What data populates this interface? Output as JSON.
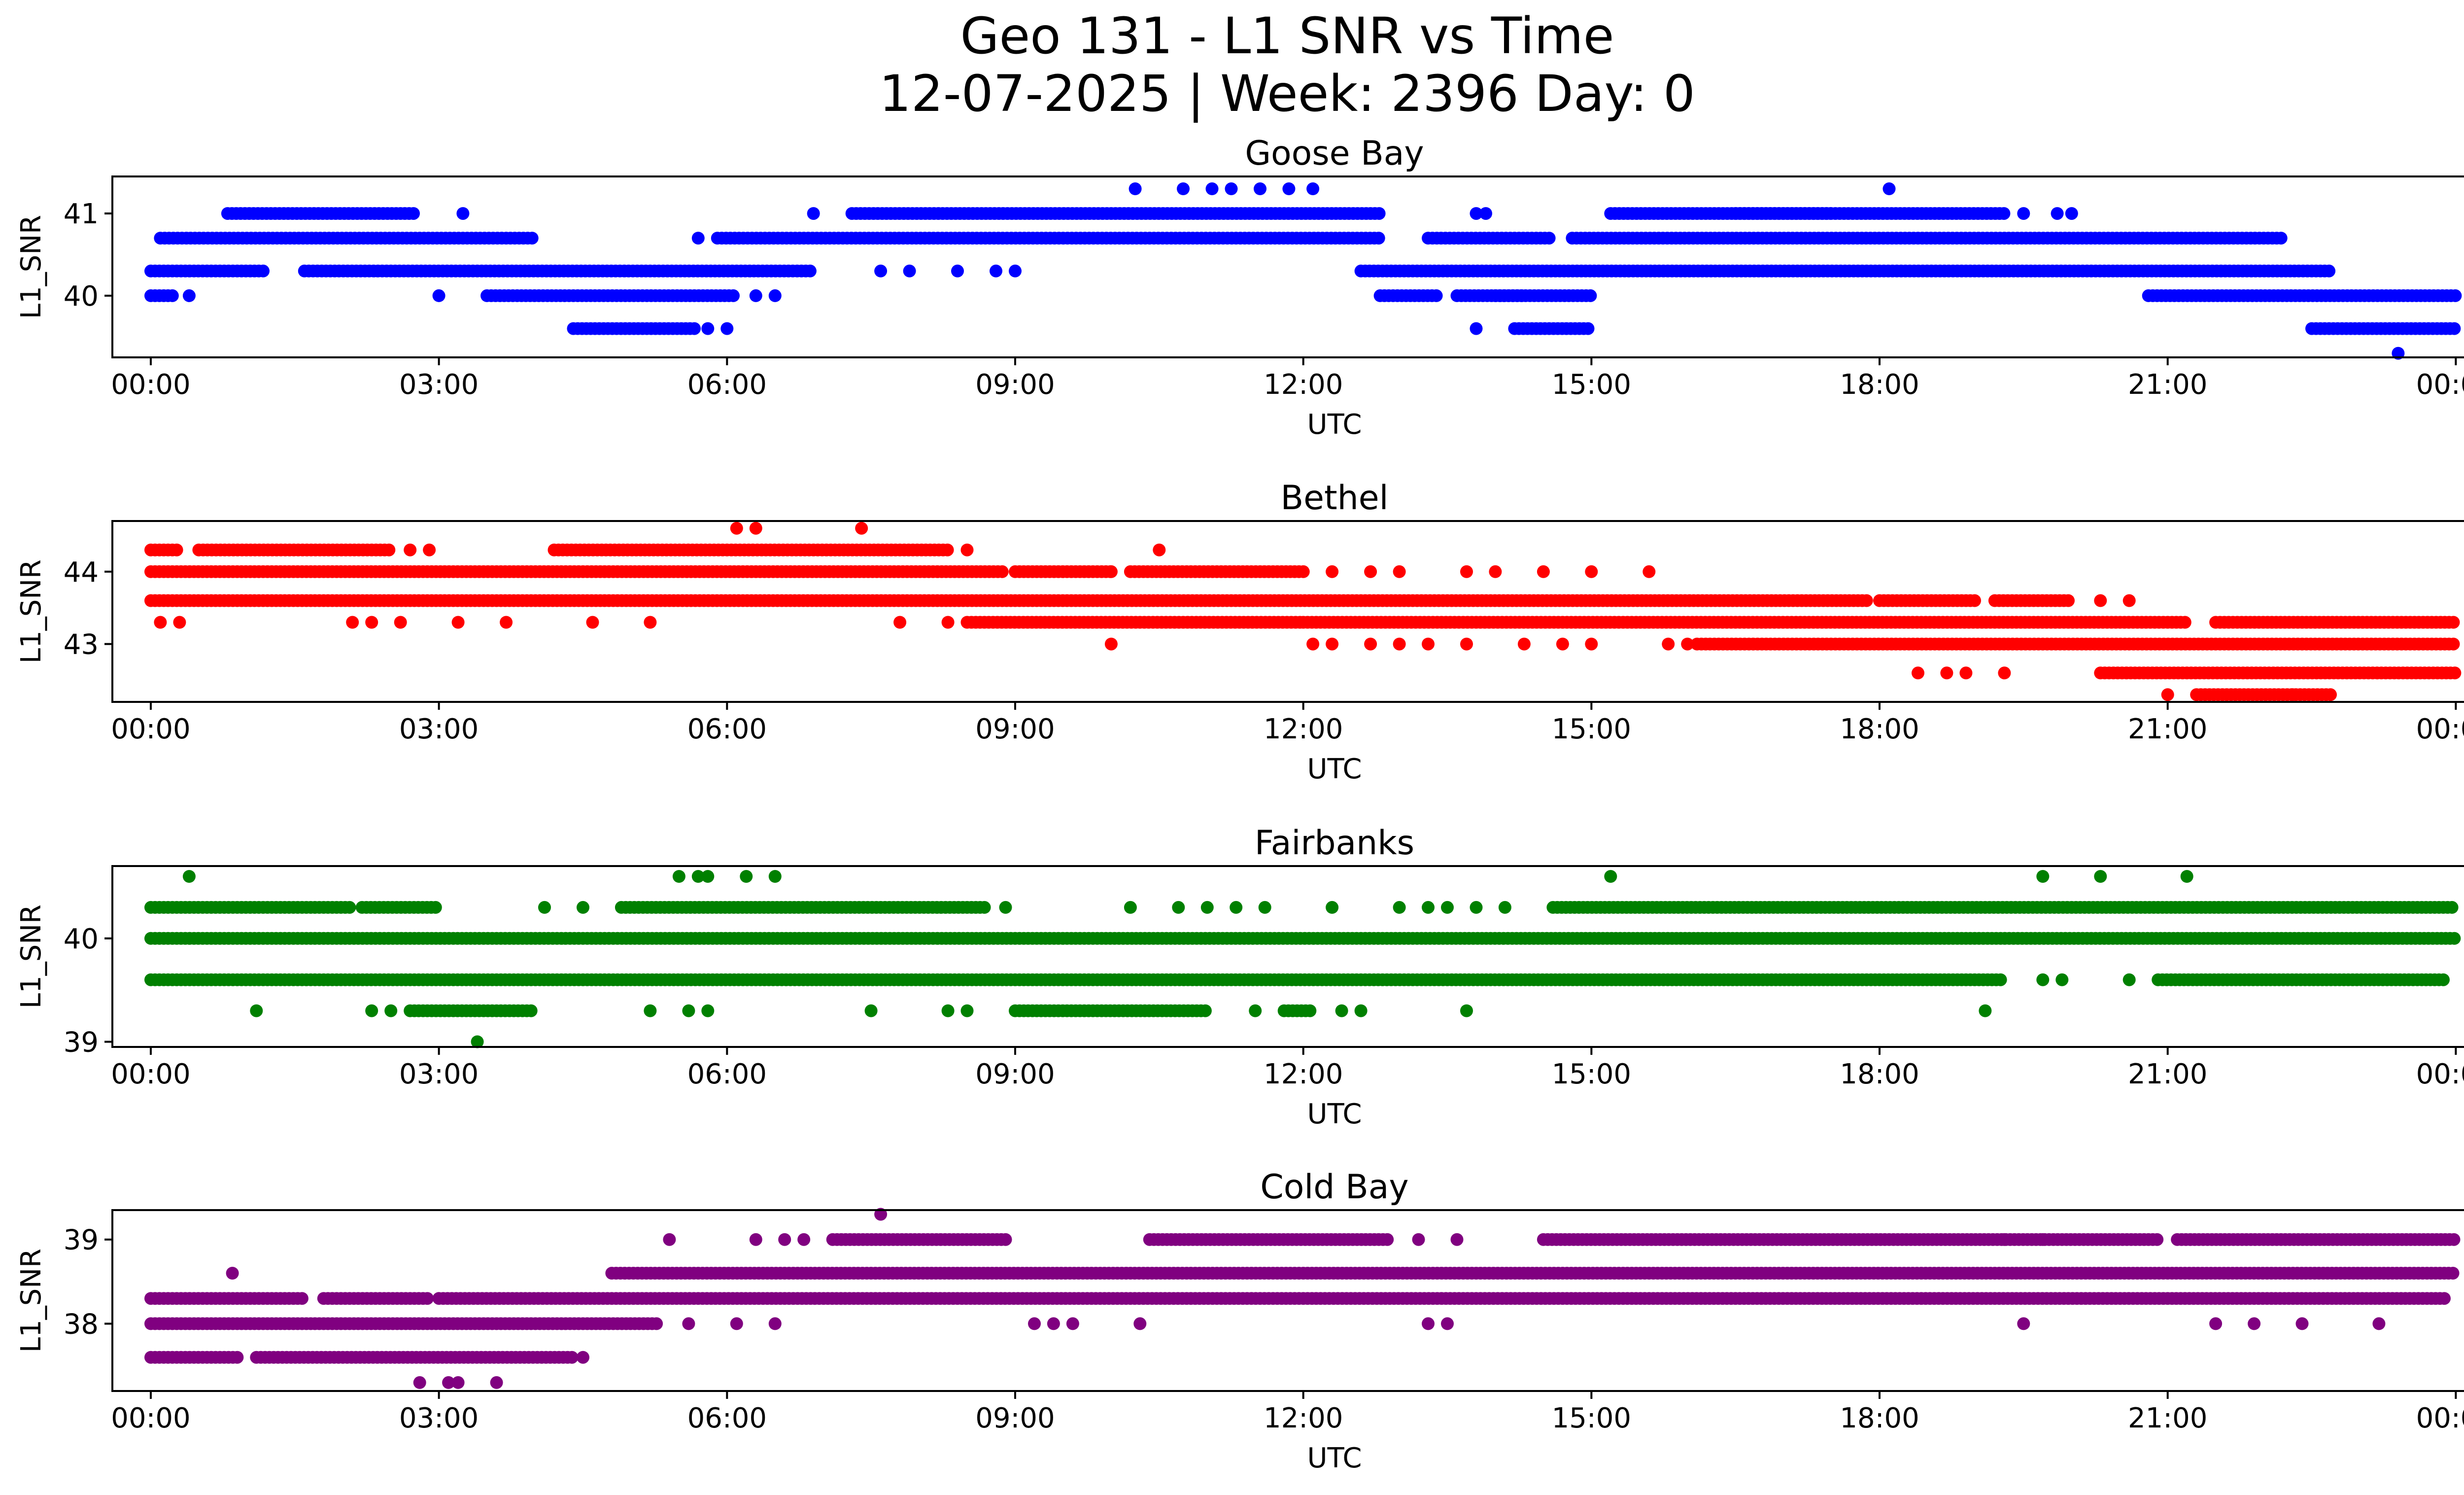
{
  "figure": {
    "title_line1": "Geo 131 - L1 SNR vs Time",
    "title_line2": "12-07-2025 | Week: 2396 Day: 0"
  },
  "chart_data": [
    {
      "type": "scatter",
      "title": "Goose Bay",
      "xlabel": "UTC",
      "ylabel": "L1_SNR",
      "color": "#0000ff",
      "xlim": [
        -0.4,
        25.05
      ],
      "ylim": [
        39.25,
        41.45
      ],
      "xticks": [
        0,
        3,
        6,
        9,
        12,
        15,
        18,
        21,
        24
      ],
      "xticklabels": [
        "00:00",
        "03:00",
        "06:00",
        "09:00",
        "12:00",
        "15:00",
        "18:00",
        "21:00",
        "00:00"
      ],
      "yticks": [
        40,
        41
      ],
      "yticklabels": [
        "40",
        "41"
      ],
      "bands": [
        {
          "y": 41.3,
          "ranges": [],
          "points": [
            10.25,
            10.75,
            11.05,
            11.25,
            11.55,
            11.85,
            12.1,
            18.1
          ]
        },
        {
          "y": 41.0,
          "ranges": [
            [
              0.8,
              2.75
            ],
            [
              7.3,
              12.8
            ],
            [
              15.2,
              19.3
            ],
            [
              16.5,
              17.5
            ]
          ],
          "points": [
            3.25,
            6.9,
            13.8,
            13.9,
            19.5,
            19.85,
            20.0
          ]
        },
        {
          "y": 40.7,
          "ranges": [
            [
              0.1,
              4.0
            ],
            [
              5.9,
              12.8
            ],
            [
              13.3,
              14.6
            ],
            [
              14.8,
              22.2
            ]
          ],
          "points": [
            5.7
          ]
        },
        {
          "y": 40.3,
          "ranges": [
            [
              0.0,
              1.2
            ],
            [
              1.6,
              6.9
            ],
            [
              12.6,
              22.7
            ]
          ],
          "points": [
            7.6,
            7.9,
            8.4,
            8.8,
            9.0
          ]
        },
        {
          "y": 40.0,
          "ranges": [
            [
              0.0,
              0.25
            ],
            [
              3.5,
              6.1
            ],
            [
              12.8,
              13.4
            ],
            [
              13.6,
              14.3
            ],
            [
              14.0,
              15.0
            ],
            [
              20.8,
              24.0
            ]
          ],
          "points": [
            0.4,
            3.0,
            6.3,
            6.5
          ]
        },
        {
          "y": 39.6,
          "ranges": [
            [
              4.4,
              5.7
            ],
            [
              14.2,
              15.0
            ],
            [
              22.5,
              24.0
            ]
          ],
          "points": [
            5.8,
            6.0,
            13.8
          ]
        },
        {
          "y": 39.3,
          "ranges": [],
          "points": [
            23.4
          ]
        }
      ]
    },
    {
      "type": "scatter",
      "title": "Bethel",
      "xlabel": "UTC",
      "ylabel": "L1_SNR",
      "color": "#ff0000",
      "xlim": [
        -0.4,
        25.05
      ],
      "ylim": [
        42.2,
        44.7
      ],
      "xticks": [
        0,
        3,
        6,
        9,
        12,
        15,
        18,
        21,
        24
      ],
      "xticklabels": [
        "00:00",
        "03:00",
        "06:00",
        "09:00",
        "12:00",
        "15:00",
        "18:00",
        "21:00",
        "00:00"
      ],
      "yticks": [
        43,
        44
      ],
      "yticklabels": [
        "43",
        "44"
      ],
      "bands": [
        {
          "y": 44.6,
          "ranges": [],
          "points": [
            6.1,
            6.3,
            7.4
          ]
        },
        {
          "y": 44.3,
          "ranges": [
            [
              0.0,
              0.3
            ],
            [
              0.5,
              2.5
            ],
            [
              4.2,
              8.3
            ]
          ],
          "points": [
            2.7,
            2.9,
            8.5,
            10.5
          ]
        },
        {
          "y": 44.0,
          "ranges": [
            [
              0.0,
              8.9
            ],
            [
              9.0,
              10.0
            ],
            [
              10.2,
              12.0
            ]
          ],
          "points": [
            12.3,
            12.7,
            13.0,
            13.7,
            14.0,
            14.5,
            15.0,
            15.6,
            10.0
          ]
        },
        {
          "y": 43.6,
          "ranges": [
            [
              0.0,
              17.9
            ],
            [
              18.0,
              19.0
            ],
            [
              19.2,
              20.0
            ]
          ],
          "points": [
            20.3,
            20.6
          ]
        },
        {
          "y": 43.3,
          "ranges": [
            [
              8.5,
              12.0
            ],
            [
              12.0,
              21.2
            ],
            [
              21.5,
              24.0
            ]
          ],
          "points": [
            0.1,
            0.3,
            2.1,
            2.3,
            2.6,
            3.2,
            3.7,
            4.6,
            5.2,
            7.8,
            8.3
          ]
        },
        {
          "y": 43.0,
          "ranges": [
            [
              16.1,
              24.0
            ]
          ],
          "points": [
            10.0,
            12.1,
            12.3,
            12.7,
            13.0,
            13.3,
            13.7,
            14.3,
            14.7,
            15.0,
            15.8,
            16.0
          ]
        },
        {
          "y": 42.6,
          "ranges": [
            [
              20.3,
              24.0
            ]
          ],
          "points": [
            18.4,
            18.7,
            18.9,
            19.3
          ]
        },
        {
          "y": 42.3,
          "ranges": [
            [
              21.3,
              22.7
            ]
          ],
          "points": [
            21.0,
            22.3
          ]
        }
      ]
    },
    {
      "type": "scatter",
      "title": "Fairbanks",
      "xlabel": "UTC",
      "ylabel": "L1_SNR",
      "color": "#008000",
      "xlim": [
        -0.4,
        25.05
      ],
      "ylim": [
        38.95,
        40.7
      ],
      "xticks": [
        0,
        3,
        6,
        9,
        12,
        15,
        18,
        21,
        24
      ],
      "xticklabels": [
        "00:00",
        "03:00",
        "06:00",
        "09:00",
        "12:00",
        "15:00",
        "18:00",
        "21:00",
        "00:00"
      ],
      "yticks": [
        39,
        40
      ],
      "yticklabels": [
        "39",
        "40"
      ],
      "bands": [
        {
          "y": 40.6,
          "ranges": [],
          "points": [
            0.4,
            5.5,
            5.7,
            5.8,
            6.2,
            6.5,
            15.2,
            19.7,
            20.3,
            21.2
          ]
        },
        {
          "y": 40.3,
          "ranges": [
            [
              0.0,
              2.1
            ],
            [
              2.2,
              3.0
            ],
            [
              4.9,
              8.7
            ],
            [
              14.6,
              24.0
            ]
          ],
          "points": [
            4.1,
            4.5,
            8.9,
            10.2,
            10.7,
            11.0,
            11.3,
            11.6,
            12.3,
            13.0,
            13.3,
            13.5,
            13.8,
            14.1
          ]
        },
        {
          "y": 40.0,
          "ranges": [
            [
              0.0,
              24.0
            ]
          ],
          "points": []
        },
        {
          "y": 39.6,
          "ranges": [
            [
              0.0,
              19.3
            ],
            [
              20.9,
              23.9
            ]
          ],
          "points": [
            19.7,
            19.9,
            20.6
          ]
        },
        {
          "y": 39.3,
          "ranges": [
            [
              2.7,
              4.0
            ],
            [
              9.0,
              11.0
            ],
            [
              11.8,
              12.1
            ]
          ],
          "points": [
            1.1,
            2.3,
            2.5,
            5.2,
            5.6,
            5.8,
            7.5,
            8.3,
            8.5,
            11.5,
            12.4,
            12.6,
            13.7,
            19.1
          ]
        },
        {
          "y": 39.0,
          "ranges": [],
          "points": [
            3.4
          ]
        }
      ]
    },
    {
      "type": "scatter",
      "title": "Cold Bay",
      "xlabel": "UTC",
      "ylabel": "L1_SNR",
      "color": "#800080",
      "xlim": [
        -0.4,
        25.05
      ],
      "ylim": [
        37.2,
        39.35
      ],
      "xticks": [
        0,
        3,
        6,
        9,
        12,
        15,
        18,
        21,
        24
      ],
      "xticklabels": [
        "00:00",
        "03:00",
        "06:00",
        "09:00",
        "12:00",
        "15:00",
        "18:00",
        "21:00",
        "00:00"
      ],
      "yticks": [
        38,
        39
      ],
      "yticklabels": [
        "38",
        "39"
      ],
      "bands": [
        {
          "y": 39.3,
          "ranges": [],
          "points": [
            7.6
          ]
        },
        {
          "y": 39.0,
          "ranges": [
            [
              7.1,
              8.9
            ],
            [
              10.4,
              12.9
            ],
            [
              14.5,
              20.9
            ],
            [
              21.1,
              24.0
            ]
          ],
          "points": [
            5.4,
            6.3,
            6.6,
            6.8,
            13.2,
            13.6,
            19.3,
            19.7
          ]
        },
        {
          "y": 38.6,
          "ranges": [
            [
              4.8,
              24.0
            ]
          ],
          "points": [
            0.85
          ]
        },
        {
          "y": 38.3,
          "ranges": [
            [
              0.0,
              1.6
            ],
            [
              1.8,
              2.9
            ],
            [
              3.0,
              23.9
            ]
          ],
          "points": []
        },
        {
          "y": 38.0,
          "ranges": [
            [
              0.0,
              5.3
            ]
          ],
          "points": [
            5.6,
            6.1,
            6.5,
            9.2,
            9.4,
            9.6,
            10.3,
            13.3,
            13.5,
            19.5,
            21.5,
            21.9,
            22.4,
            23.2
          ]
        },
        {
          "y": 37.6,
          "ranges": [
            [
              0.0,
              0.9
            ],
            [
              1.1,
              4.4
            ]
          ],
          "points": [
            4.5
          ]
        },
        {
          "y": 37.3,
          "ranges": [],
          "points": [
            2.8,
            3.1,
            3.2,
            3.6
          ]
        }
      ]
    }
  ]
}
